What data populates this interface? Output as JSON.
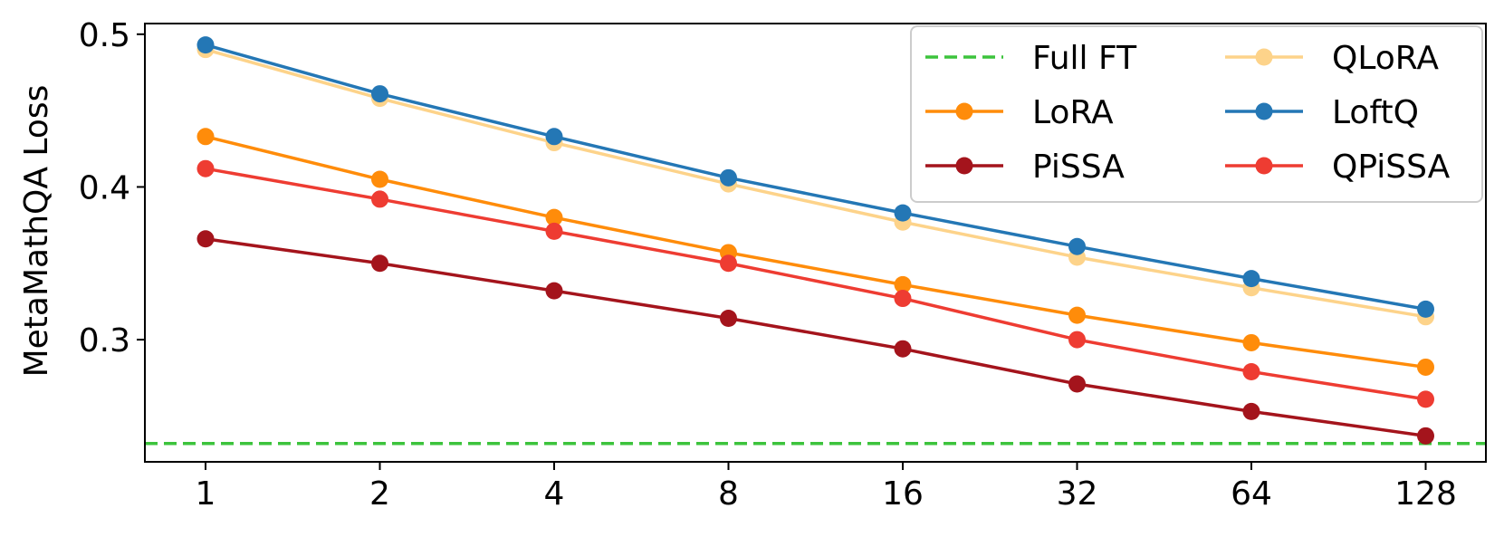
{
  "chart_data": {
    "type": "line",
    "ylabel": "MetaMathQA Loss",
    "xlabel": "",
    "x_tick_labels": [
      "1",
      "2",
      "4",
      "8",
      "16",
      "32",
      "64",
      "128"
    ],
    "y_ticks": [
      0.3,
      0.4,
      0.5
    ],
    "y_tick_labels": [
      "0.3",
      "0.4",
      "0.5"
    ],
    "ylim": [
      0.22,
      0.507
    ],
    "grid": false,
    "legend": {
      "placement": "top-right",
      "columns": 2
    },
    "reference_lines": [
      {
        "name": "Full FT",
        "value": 0.232,
        "color": "#3cc33c",
        "style": "dashed"
      }
    ],
    "series": [
      {
        "name": "LoRA",
        "color": "#ff8c0a",
        "values": [
          0.433,
          0.405,
          0.38,
          0.357,
          0.336,
          0.316,
          0.298,
          0.282
        ]
      },
      {
        "name": "PiSSA",
        "color": "#a4141c",
        "values": [
          0.366,
          0.35,
          0.332,
          0.314,
          0.294,
          0.271,
          0.253,
          0.237
        ]
      },
      {
        "name": "QLoRA",
        "color": "#fdd38a",
        "values": [
          0.49,
          0.458,
          0.429,
          0.402,
          0.377,
          0.354,
          0.334,
          0.315
        ]
      },
      {
        "name": "LoftQ",
        "color": "#2477b5",
        "values": [
          0.493,
          0.461,
          0.433,
          0.406,
          0.383,
          0.361,
          0.34,
          0.32
        ]
      },
      {
        "name": "QPiSSA",
        "color": "#ee3c32",
        "values": [
          0.412,
          0.392,
          0.371,
          0.35,
          0.327,
          0.3,
          0.279,
          0.261
        ]
      }
    ]
  }
}
